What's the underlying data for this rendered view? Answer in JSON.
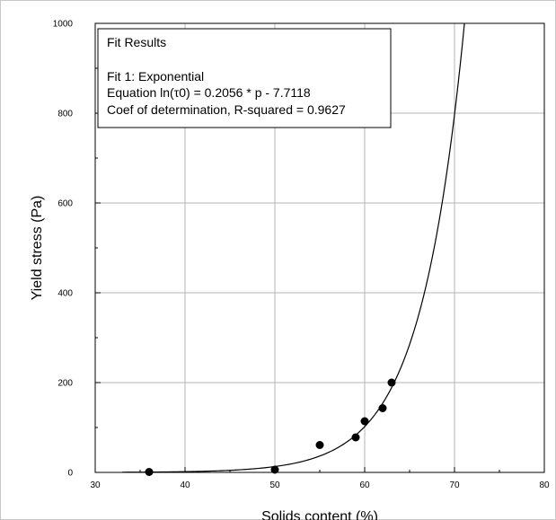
{
  "chart_data": {
    "type": "scatter",
    "xlabel": "Solids content (%)",
    "ylabel": "Yield stress (Pa)",
    "xlim": [
      30,
      80
    ],
    "ylim": [
      0,
      1000
    ],
    "xticks": [
      "30",
      "40",
      "50",
      "60",
      "70",
      "80"
    ],
    "yticks": [
      "0",
      "200",
      "400",
      "600",
      "800",
      "1000"
    ],
    "grid": true,
    "points": [
      {
        "x": 36,
        "y": 1
      },
      {
        "x": 50,
        "y": 6
      },
      {
        "x": 55,
        "y": 61
      },
      {
        "x": 59,
        "y": 78
      },
      {
        "x": 60,
        "y": 114
      },
      {
        "x": 62,
        "y": 143
      },
      {
        "x": 63,
        "y": 200
      }
    ],
    "fit": {
      "a": 0.2056,
      "b": -7.7118
    },
    "fit_box": {
      "title": "Fit Results",
      "lines": [
        "Fit 1: Exponential",
        "Equation ln(τ0) = 0.2056 * p - 7.7118",
        "Coef of determination, R-squared = 0.9627"
      ]
    }
  }
}
